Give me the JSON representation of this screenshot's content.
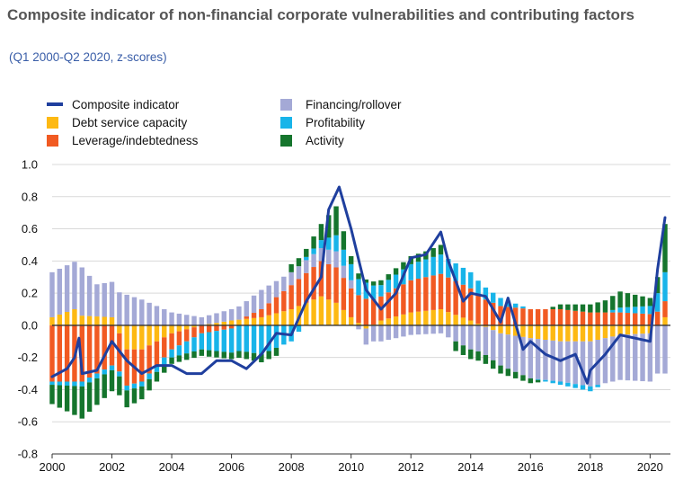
{
  "header": {
    "title": "Composite indicator of non-financial corporate vulnerabilities and contributing factors",
    "subtitle": "(Q1 2000-Q2 2020, z-scores)"
  },
  "chart_data": {
    "type": "bar",
    "stacked": true,
    "ylim": [
      -0.8,
      1.0
    ],
    "yticks": [
      "1.0",
      "0.8",
      "0.6",
      "0.4",
      "0.2",
      "0.0",
      "-0.2",
      "-0.4",
      "-0.6",
      "-0.8"
    ],
    "xticks": [
      "2000",
      "2002",
      "2004",
      "2006",
      "2008",
      "2010",
      "2012",
      "2014",
      "2016",
      "2018",
      "2020"
    ],
    "xrange": [
      2000,
      2020.5
    ],
    "grid": "horizontal",
    "legend_position": "top-left",
    "series": [
      {
        "name": "Composite indicator",
        "type": "line",
        "color": "#1f3f9e"
      },
      {
        "name": "Debt service capacity",
        "type": "bar",
        "color": "#fdb913"
      },
      {
        "name": "Leverage/indebtedness",
        "type": "bar",
        "color": "#f15a22"
      },
      {
        "name": "Financing/rollover",
        "type": "bar",
        "color": "#a4a9d6"
      },
      {
        "name": "Profitability",
        "type": "bar",
        "color": "#18b4e9"
      },
      {
        "name": "Activity",
        "type": "bar",
        "color": "#15752d"
      }
    ],
    "anchors": {
      "Composite indicator": [
        [
          2000,
          -0.32
        ],
        [
          2000.5,
          -0.27
        ],
        [
          2000.75,
          -0.2
        ],
        [
          2000.9,
          -0.08
        ],
        [
          2001.0,
          -0.3
        ],
        [
          2001.5,
          -0.28
        ],
        [
          2002,
          -0.1
        ],
        [
          2002.5,
          -0.22
        ],
        [
          2003,
          -0.3
        ],
        [
          2003.5,
          -0.25
        ],
        [
          2004,
          -0.25
        ],
        [
          2004.5,
          -0.3
        ],
        [
          2005,
          -0.3
        ],
        [
          2005.5,
          -0.22
        ],
        [
          2006,
          -0.22
        ],
        [
          2006.5,
          -0.27
        ],
        [
          2007,
          -0.18
        ],
        [
          2007.5,
          -0.05
        ],
        [
          2008,
          -0.06
        ],
        [
          2008.5,
          0.15
        ],
        [
          2009,
          0.3
        ],
        [
          2009.25,
          0.72
        ],
        [
          2009.6,
          0.86
        ],
        [
          2010,
          0.6
        ],
        [
          2010.5,
          0.22
        ],
        [
          2011,
          0.1
        ],
        [
          2011.5,
          0.2
        ],
        [
          2012,
          0.42
        ],
        [
          2012.5,
          0.44
        ],
        [
          2013,
          0.58
        ],
        [
          2013.25,
          0.4
        ],
        [
          2013.75,
          0.15
        ],
        [
          2014,
          0.2
        ],
        [
          2014.5,
          0.18
        ],
        [
          2015,
          0.02
        ],
        [
          2015.25,
          0.17
        ],
        [
          2015.75,
          -0.15
        ],
        [
          2016,
          -0.1
        ],
        [
          2016.5,
          -0.18
        ],
        [
          2017,
          -0.22
        ],
        [
          2017.5,
          -0.18
        ],
        [
          2017.9,
          -0.36
        ],
        [
          2018,
          -0.28
        ],
        [
          2018.5,
          -0.18
        ],
        [
          2019,
          -0.06
        ],
        [
          2019.5,
          -0.08
        ],
        [
          2020,
          -0.1
        ],
        [
          2020.25,
          0.35
        ],
        [
          2020.5,
          0.67
        ]
      ],
      "Debt service capacity": [
        [
          2000,
          0.05
        ],
        [
          2000.75,
          0.1
        ],
        [
          2001,
          0.06
        ],
        [
          2002,
          0.05
        ],
        [
          2002.5,
          -0.15
        ],
        [
          2003,
          -0.15
        ],
        [
          2004,
          -0.05
        ],
        [
          2005,
          0
        ],
        [
          2006,
          0.03
        ],
        [
          2007,
          0.05
        ],
        [
          2008,
          0.1
        ],
        [
          2009,
          0.18
        ],
        [
          2009.5,
          0.14
        ],
        [
          2010,
          0.05
        ],
        [
          2010.5,
          -0.02
        ],
        [
          2011,
          0.03
        ],
        [
          2012,
          0.08
        ],
        [
          2013,
          0.1
        ],
        [
          2014,
          0.03
        ],
        [
          2015,
          -0.05
        ],
        [
          2016,
          -0.08
        ],
        [
          2017,
          -0.1
        ],
        [
          2018,
          -0.1
        ],
        [
          2019,
          -0.06
        ],
        [
          2020,
          -0.05
        ],
        [
          2020.5,
          0.05
        ]
      ],
      "Leverage/indebtedness": [
        [
          2000,
          -0.35
        ],
        [
          2001,
          -0.35
        ],
        [
          2002,
          -0.25
        ],
        [
          2003,
          -0.2
        ],
        [
          2004,
          -0.1
        ],
        [
          2005,
          -0.05
        ],
        [
          2006,
          -0.02
        ],
        [
          2007,
          0.05
        ],
        [
          2008,
          0.15
        ],
        [
          2009,
          0.22
        ],
        [
          2009.5,
          0.22
        ],
        [
          2010,
          0.18
        ],
        [
          2011,
          0.15
        ],
        [
          2012,
          0.2
        ],
        [
          2013,
          0.22
        ],
        [
          2014,
          0.2
        ],
        [
          2015,
          0.12
        ],
        [
          2016,
          0.1
        ],
        [
          2017,
          0.1
        ],
        [
          2018,
          0.08
        ],
        [
          2019,
          0.08
        ],
        [
          2020,
          0.07
        ],
        [
          2020.5,
          0.1
        ]
      ],
      "Financing/rollover": [
        [
          2000,
          0.28
        ],
        [
          2001,
          0.3
        ],
        [
          2001.5,
          0.2
        ],
        [
          2002,
          0.22
        ],
        [
          2003,
          0.16
        ],
        [
          2004,
          0.08
        ],
        [
          2005,
          0.05
        ],
        [
          2006,
          0.07
        ],
        [
          2007,
          0.12
        ],
        [
          2008,
          0.08
        ],
        [
          2009,
          0.08
        ],
        [
          2009.5,
          0.1
        ],
        [
          2010,
          0.05
        ],
        [
          2010.5,
          -0.1
        ],
        [
          2011,
          -0.1
        ],
        [
          2012,
          -0.06
        ],
        [
          2013,
          -0.05
        ],
        [
          2014,
          -0.15
        ],
        [
          2015,
          -0.2
        ],
        [
          2016,
          -0.25
        ],
        [
          2017,
          -0.25
        ],
        [
          2018,
          -0.28
        ],
        [
          2019,
          -0.28
        ],
        [
          2020,
          -0.3
        ],
        [
          2020.5,
          -0.3
        ]
      ],
      "Profitability": [
        [
          2000,
          -0.02
        ],
        [
          2001,
          -0.03
        ],
        [
          2002,
          -0.03
        ],
        [
          2003,
          -0.03
        ],
        [
          2004,
          -0.05
        ],
        [
          2005,
          -0.1
        ],
        [
          2006,
          -0.15
        ],
        [
          2007,
          -0.18
        ],
        [
          2008,
          -0.1
        ],
        [
          2008.5,
          0.02
        ],
        [
          2009,
          0.05
        ],
        [
          2009.5,
          0.1
        ],
        [
          2010,
          0.1
        ],
        [
          2010.5,
          0.1
        ],
        [
          2011,
          0.07
        ],
        [
          2012,
          0.1
        ],
        [
          2013,
          0.12
        ],
        [
          2014,
          0.1
        ],
        [
          2015,
          0.05
        ],
        [
          2016,
          0
        ],
        [
          2017,
          -0.02
        ],
        [
          2018,
          -0.03
        ],
        [
          2019,
          0.03
        ],
        [
          2020,
          0.05
        ],
        [
          2020.5,
          0.18
        ]
      ],
      "Activity": [
        [
          2000,
          -0.12
        ],
        [
          2001,
          -0.2
        ],
        [
          2002,
          -0.13
        ],
        [
          2003,
          -0.08
        ],
        [
          2004,
          -0.04
        ],
        [
          2005,
          -0.04
        ],
        [
          2006,
          -0.04
        ],
        [
          2007,
          -0.05
        ],
        [
          2007.5,
          -0.05
        ],
        [
          2008,
          0.05
        ],
        [
          2008.5,
          0.05
        ],
        [
          2009,
          0.1
        ],
        [
          2009.5,
          0.18
        ],
        [
          2010,
          0.05
        ],
        [
          2010.5,
          0.02
        ],
        [
          2011,
          0.03
        ],
        [
          2012,
          0.05
        ],
        [
          2012.5,
          0.05
        ],
        [
          2013,
          0.06
        ],
        [
          2013.5,
          -0.06
        ],
        [
          2014,
          -0.06
        ],
        [
          2015,
          -0.05
        ],
        [
          2016,
          -0.03
        ],
        [
          2017,
          0.03
        ],
        [
          2018,
          0.05
        ],
        [
          2019,
          0.1
        ],
        [
          2020,
          0.05
        ],
        [
          2020.25,
          0.1
        ],
        [
          2020.5,
          0.3
        ]
      ]
    }
  }
}
